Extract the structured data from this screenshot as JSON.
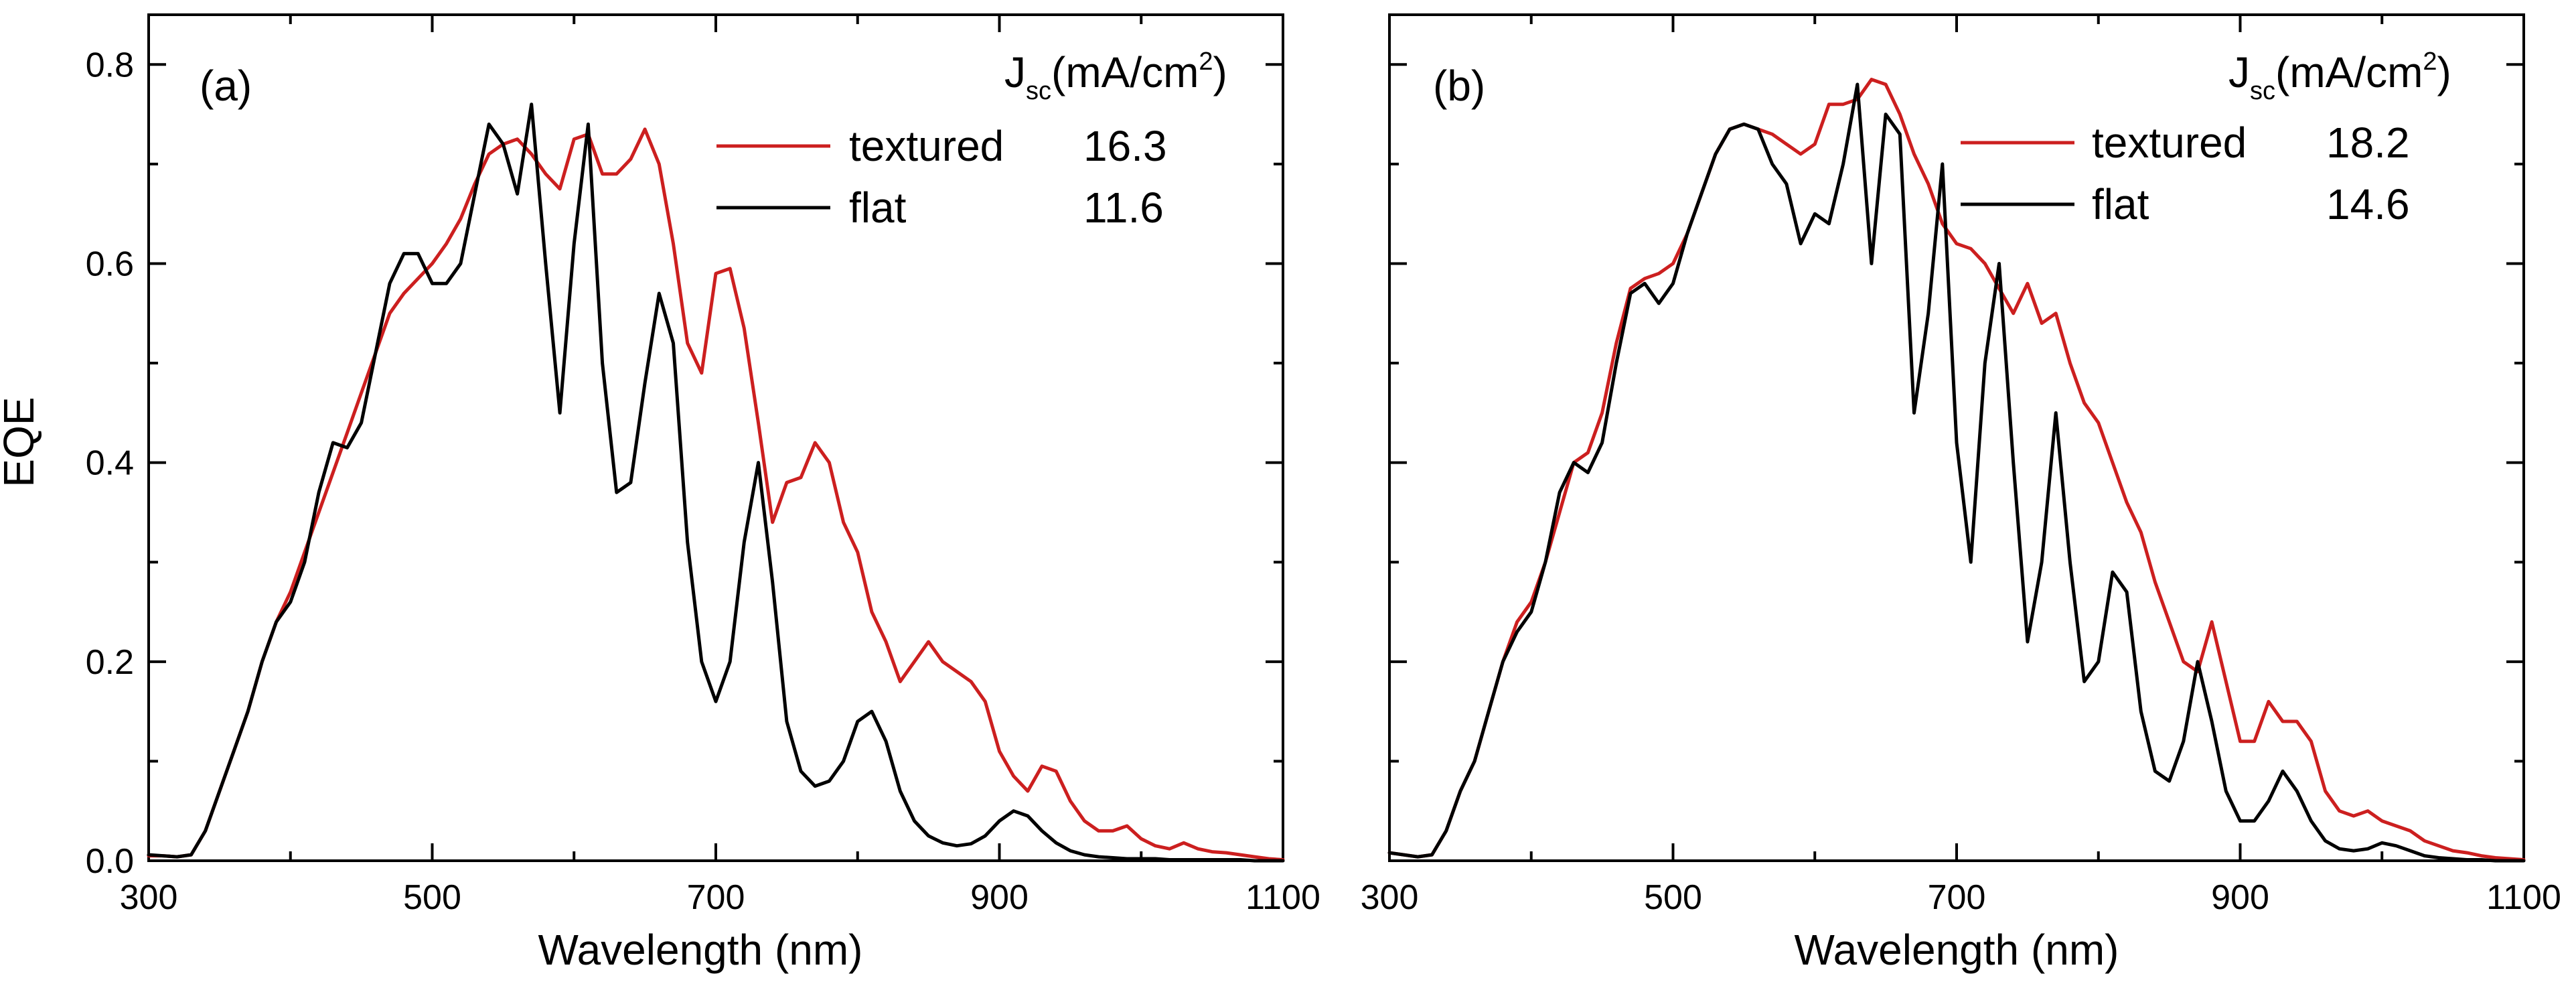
{
  "chart_data": [
    {
      "type": "line",
      "panel_label": "(a)",
      "xlabel": "Wavelength (nm)",
      "ylabel": "EQE",
      "xlim": [
        300,
        1100
      ],
      "ylim": [
        0,
        0.85
      ],
      "xticks": [
        300,
        500,
        700,
        900,
        1100
      ],
      "xtick_labels": [
        "300",
        "500",
        "700",
        "900",
        "1100"
      ],
      "yticks": [
        0.0,
        0.2,
        0.4,
        0.6,
        0.8
      ],
      "ytick_labels": [
        "0.0",
        "0.2",
        "0.4",
        "0.6",
        "0.8"
      ],
      "legend": {
        "placement": "top-right",
        "header_main": "J",
        "header_sub": "sc",
        "header_unit": "(mA/cm",
        "header_sup": "2",
        "header_close": ")"
      },
      "series": [
        {
          "name": "textured",
          "jsc": "16.3",
          "color": "#cc1f1f",
          "x": [
            300,
            310,
            320,
            330,
            340,
            350,
            360,
            370,
            380,
            390,
            400,
            410,
            420,
            430,
            440,
            450,
            460,
            470,
            480,
            490,
            500,
            510,
            520,
            530,
            540,
            550,
            560,
            570,
            580,
            590,
            600,
            610,
            620,
            630,
            640,
            650,
            660,
            670,
            680,
            690,
            700,
            710,
            720,
            730,
            740,
            750,
            760,
            770,
            780,
            790,
            800,
            810,
            820,
            830,
            840,
            850,
            860,
            870,
            880,
            890,
            900,
            910,
            920,
            930,
            940,
            950,
            960,
            970,
            980,
            990,
            1000,
            1010,
            1020,
            1030,
            1040,
            1050,
            1060,
            1070,
            1080,
            1090,
            1100
          ],
          "y": [
            0.005,
            0.005,
            0.004,
            0.006,
            0.03,
            0.07,
            0.11,
            0.15,
            0.2,
            0.24,
            0.27,
            0.31,
            0.35,
            0.39,
            0.43,
            0.47,
            0.51,
            0.55,
            0.57,
            0.585,
            0.6,
            0.62,
            0.645,
            0.68,
            0.71,
            0.72,
            0.725,
            0.71,
            0.69,
            0.675,
            0.725,
            0.73,
            0.69,
            0.69,
            0.705,
            0.735,
            0.7,
            0.62,
            0.52,
            0.49,
            0.59,
            0.595,
            0.535,
            0.44,
            0.34,
            0.38,
            0.385,
            0.42,
            0.4,
            0.34,
            0.31,
            0.25,
            0.22,
            0.18,
            0.2,
            0.22,
            0.2,
            0.19,
            0.18,
            0.16,
            0.11,
            0.085,
            0.07,
            0.095,
            0.09,
            0.06,
            0.04,
            0.03,
            0.03,
            0.035,
            0.022,
            0.015,
            0.012,
            0.018,
            0.012,
            0.009,
            0.008,
            0.006,
            0.004,
            0.002,
            0.001
          ]
        },
        {
          "name": "flat",
          "jsc": "11.6",
          "color": "#000000",
          "x": [
            300,
            310,
            320,
            330,
            340,
            350,
            360,
            370,
            380,
            390,
            400,
            410,
            420,
            430,
            440,
            450,
            460,
            470,
            480,
            490,
            500,
            510,
            520,
            530,
            540,
            550,
            560,
            570,
            580,
            590,
            600,
            610,
            620,
            630,
            640,
            650,
            660,
            670,
            680,
            690,
            700,
            710,
            720,
            730,
            740,
            750,
            760,
            770,
            780,
            790,
            800,
            810,
            820,
            830,
            840,
            850,
            860,
            870,
            880,
            890,
            900,
            910,
            920,
            930,
            940,
            950,
            960,
            970,
            980,
            990,
            1000,
            1010,
            1020,
            1030,
            1040,
            1050,
            1060,
            1070,
            1080,
            1090,
            1100
          ],
          "y": [
            0.006,
            0.005,
            0.004,
            0.006,
            0.03,
            0.07,
            0.11,
            0.15,
            0.2,
            0.24,
            0.26,
            0.3,
            0.37,
            0.42,
            0.415,
            0.44,
            0.51,
            0.58,
            0.61,
            0.61,
            0.58,
            0.58,
            0.6,
            0.67,
            0.74,
            0.72,
            0.67,
            0.76,
            0.6,
            0.45,
            0.62,
            0.74,
            0.5,
            0.37,
            0.38,
            0.48,
            0.57,
            0.52,
            0.32,
            0.2,
            0.16,
            0.2,
            0.32,
            0.4,
            0.28,
            0.14,
            0.09,
            0.075,
            0.08,
            0.1,
            0.14,
            0.15,
            0.12,
            0.07,
            0.04,
            0.025,
            0.018,
            0.015,
            0.017,
            0.025,
            0.04,
            0.05,
            0.045,
            0.03,
            0.018,
            0.01,
            0.006,
            0.004,
            0.003,
            0.002,
            0.002,
            0.002,
            0.001,
            0.001,
            0.001,
            0.001,
            0.001,
            0.001,
            0.0,
            0.0,
            0.0
          ]
        }
      ]
    },
    {
      "type": "line",
      "panel_label": "(b)",
      "xlabel": "Wavelength (nm)",
      "ylabel": "",
      "xlim": [
        300,
        1100
      ],
      "ylim": [
        0,
        0.85
      ],
      "xticks": [
        300,
        500,
        700,
        900,
        1100
      ],
      "xtick_labels": [
        "300",
        "500",
        "700",
        "900",
        "1100"
      ],
      "yticks": [
        0.0,
        0.2,
        0.4,
        0.6,
        0.8
      ],
      "ytick_labels": [],
      "legend": {
        "placement": "top-right",
        "header_main": "J",
        "header_sub": "sc",
        "header_unit": "(mA/cm",
        "header_sup": "2",
        "header_close": ")"
      },
      "series": [
        {
          "name": "textured",
          "jsc": "18.2",
          "color": "#cc1f1f",
          "x": [
            300,
            310,
            320,
            330,
            340,
            350,
            360,
            370,
            380,
            390,
            400,
            410,
            420,
            430,
            440,
            450,
            460,
            470,
            480,
            490,
            500,
            510,
            520,
            530,
            540,
            550,
            560,
            570,
            580,
            590,
            600,
            610,
            620,
            630,
            640,
            650,
            660,
            670,
            680,
            690,
            700,
            710,
            720,
            730,
            740,
            750,
            760,
            770,
            780,
            790,
            800,
            810,
            820,
            830,
            840,
            850,
            860,
            870,
            880,
            890,
            900,
            910,
            920,
            930,
            940,
            950,
            960,
            970,
            980,
            990,
            1000,
            1010,
            1020,
            1030,
            1040,
            1050,
            1060,
            1070,
            1080,
            1090,
            1100
          ],
          "y": [
            0.008,
            0.006,
            0.004,
            0.006,
            0.03,
            0.07,
            0.1,
            0.15,
            0.2,
            0.24,
            0.26,
            0.3,
            0.35,
            0.4,
            0.41,
            0.45,
            0.52,
            0.575,
            0.585,
            0.59,
            0.6,
            0.63,
            0.67,
            0.71,
            0.735,
            0.74,
            0.735,
            0.73,
            0.72,
            0.71,
            0.72,
            0.76,
            0.76,
            0.765,
            0.785,
            0.78,
            0.75,
            0.71,
            0.68,
            0.64,
            0.62,
            0.615,
            0.6,
            0.575,
            0.55,
            0.58,
            0.54,
            0.55,
            0.5,
            0.46,
            0.44,
            0.4,
            0.36,
            0.33,
            0.28,
            0.24,
            0.2,
            0.19,
            0.24,
            0.18,
            0.12,
            0.12,
            0.16,
            0.14,
            0.14,
            0.12,
            0.07,
            0.05,
            0.045,
            0.05,
            0.04,
            0.035,
            0.03,
            0.02,
            0.015,
            0.01,
            0.008,
            0.005,
            0.003,
            0.002,
            0.001
          ]
        },
        {
          "name": "flat",
          "jsc": "14.6",
          "color": "#000000",
          "x": [
            300,
            310,
            320,
            330,
            340,
            350,
            360,
            370,
            380,
            390,
            400,
            410,
            420,
            430,
            440,
            450,
            460,
            470,
            480,
            490,
            500,
            510,
            520,
            530,
            540,
            550,
            560,
            570,
            580,
            590,
            600,
            610,
            620,
            630,
            640,
            650,
            660,
            670,
            680,
            690,
            700,
            710,
            720,
            730,
            740,
            750,
            760,
            770,
            780,
            790,
            800,
            810,
            820,
            830,
            840,
            850,
            860,
            870,
            880,
            890,
            900,
            910,
            920,
            930,
            940,
            950,
            960,
            970,
            980,
            990,
            1000,
            1010,
            1020,
            1030,
            1040,
            1050,
            1060,
            1070,
            1080,
            1090,
            1100
          ],
          "y": [
            0.008,
            0.006,
            0.004,
            0.006,
            0.03,
            0.07,
            0.1,
            0.15,
            0.2,
            0.23,
            0.25,
            0.3,
            0.37,
            0.4,
            0.39,
            0.42,
            0.5,
            0.57,
            0.58,
            0.56,
            0.58,
            0.63,
            0.67,
            0.71,
            0.735,
            0.74,
            0.735,
            0.7,
            0.68,
            0.62,
            0.65,
            0.64,
            0.7,
            0.78,
            0.6,
            0.75,
            0.73,
            0.45,
            0.55,
            0.7,
            0.42,
            0.3,
            0.5,
            0.6,
            0.4,
            0.22,
            0.3,
            0.45,
            0.3,
            0.18,
            0.2,
            0.29,
            0.27,
            0.15,
            0.09,
            0.08,
            0.12,
            0.2,
            0.14,
            0.07,
            0.04,
            0.04,
            0.06,
            0.09,
            0.07,
            0.04,
            0.02,
            0.012,
            0.01,
            0.012,
            0.018,
            0.015,
            0.01,
            0.005,
            0.003,
            0.002,
            0.001,
            0.001,
            0.0,
            0.0,
            0.0
          ]
        }
      ]
    }
  ]
}
